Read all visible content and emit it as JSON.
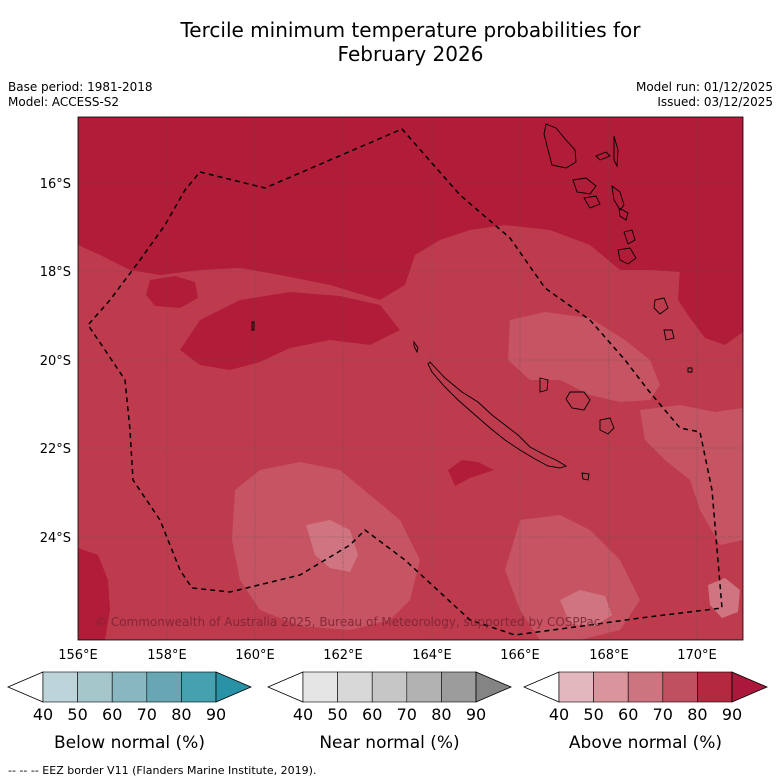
{
  "title_line1": "Tercile minimum temperature probabilities for",
  "title_line2": "February 2026",
  "meta": {
    "base_period": "Base period: 1981-2018",
    "model": "Model: ACCESS-S2",
    "model_run": "Model run: 01/12/2025",
    "issued": "Issued: 03/12/2025"
  },
  "map": {
    "lat_labels": [
      "16°S",
      "18°S",
      "20°S",
      "22°S",
      "24°S"
    ],
    "lon_labels": [
      "156°E",
      "158°E",
      "160°E",
      "162°E",
      "164°E",
      "166°E",
      "168°E",
      "170°E"
    ],
    "copyright": "© Commonwealth of Australia 2025, Bureau of Meteorology, supported by COSPPac"
  },
  "colorbars": [
    {
      "title": "Below normal (%)",
      "ticks": [
        "40",
        "50",
        "60",
        "70",
        "80",
        "90"
      ],
      "colors": [
        "#ffffff",
        "#bdd4da",
        "#a5c7cc",
        "#89b7c1",
        "#68a6b4",
        "#45a0b0",
        "#2a92a6"
      ]
    },
    {
      "title": "Near normal (%)",
      "ticks": [
        "40",
        "50",
        "60",
        "70",
        "80",
        "90"
      ],
      "colors": [
        "#ffffff",
        "#e5e5e5",
        "#d8d8d8",
        "#c6c6c6",
        "#b2b2b2",
        "#9c9c9c",
        "#848484"
      ]
    },
    {
      "title": "Above normal (%)",
      "ticks": [
        "40",
        "50",
        "60",
        "70",
        "80",
        "90"
      ],
      "colors": [
        "#ffffff",
        "#e2b8be",
        "#d9949c",
        "#cc7580",
        "#c0505f",
        "#b32a40",
        "#ab183c"
      ]
    }
  ],
  "legend_note": "--  --  -- EEZ border V11 (Flanders Marine Institute, 2019).",
  "colors": {
    "deep": "#b11c39",
    "mid": "#be3b4e",
    "light": "#c65462",
    "lighter": "#cf7480",
    "grid": "#555555"
  }
}
